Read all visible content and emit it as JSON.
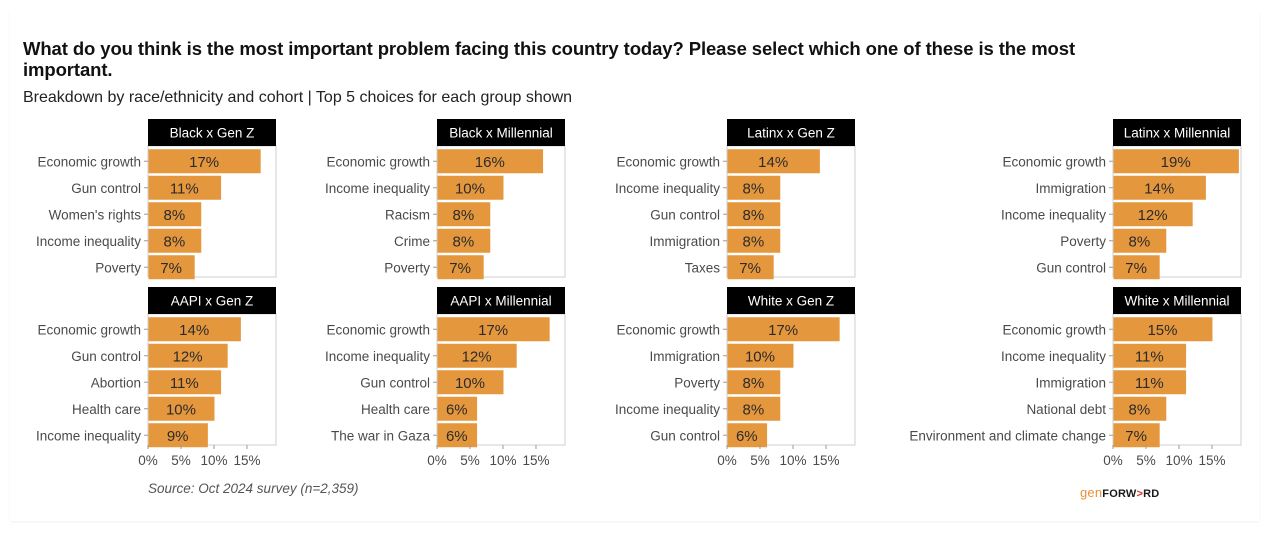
{
  "title": "What do you think is the most important problem facing this country today? Please select which one of these is the most important.",
  "subtitle": "Breakdown by race/ethnicity and cohort | Top 5 choices for each group shown",
  "source": "Source: Oct 2024 survey (n=2,359)",
  "logo": {
    "part1": "gen",
    "part2": "FORW",
    "part3": ">",
    "part4": "RD"
  },
  "colors": {
    "bar": "#e5973d",
    "strip_bg": "#000000",
    "strip_text": "#ffffff",
    "panel_border": "#cfcfcf"
  },
  "chart_data": {
    "type": "bar",
    "orientation": "horizontal",
    "layout": "facet 2x4",
    "title": "What do you think is the most important problem facing this country today? Please select which one of these is the most important.",
    "subtitle": "Breakdown by race/ethnicity and cohort | Top 5 choices for each group shown",
    "xlabel": "",
    "ylabel": "",
    "xlim": [
      0,
      19.4
    ],
    "xticks": [
      0,
      5,
      10,
      15
    ],
    "xtick_labels": [
      "0%",
      "5%",
      "10%",
      "15%"
    ],
    "grid": false,
    "legend": "none",
    "panels": [
      {
        "name": "Black x Gen Z",
        "categories": [
          "Economic growth",
          "Gun control",
          "Women's rights",
          "Income inequality",
          "Poverty"
        ],
        "values": [
          17,
          11,
          8,
          8,
          7
        ],
        "labels": [
          "17%",
          "11%",
          "8%",
          "8%",
          "7%"
        ]
      },
      {
        "name": "Black x Millennial",
        "categories": [
          "Economic growth",
          "Income inequality",
          "Racism",
          "Crime",
          "Poverty"
        ],
        "values": [
          16,
          10,
          8,
          8,
          7
        ],
        "labels": [
          "16%",
          "10%",
          "8%",
          "8%",
          "7%"
        ]
      },
      {
        "name": "Latinx x Gen Z",
        "categories": [
          "Economic growth",
          "Income inequality",
          "Gun control",
          "Immigration",
          "Taxes"
        ],
        "values": [
          14,
          8,
          8,
          8,
          7
        ],
        "labels": [
          "14%",
          "8%",
          "8%",
          "8%",
          "7%"
        ]
      },
      {
        "name": "Latinx x Millennial",
        "categories": [
          "Economic growth",
          "Immigration",
          "Income inequality",
          "Poverty",
          "Gun control"
        ],
        "values": [
          19,
          14,
          12,
          8,
          7
        ],
        "labels": [
          "19%",
          "14%",
          "12%",
          "8%",
          "7%"
        ]
      },
      {
        "name": "AAPI x Gen Z",
        "categories": [
          "Economic growth",
          "Gun control",
          "Abortion",
          "Health care",
          "Income inequality"
        ],
        "values": [
          14,
          12,
          11,
          10,
          9
        ],
        "labels": [
          "14%",
          "12%",
          "11%",
          "10%",
          "9%"
        ]
      },
      {
        "name": "AAPI x Millennial",
        "categories": [
          "Economic growth",
          "Income inequality",
          "Gun control",
          "Health care",
          "The war in Gaza"
        ],
        "values": [
          17,
          12,
          10,
          6,
          6
        ],
        "labels": [
          "17%",
          "12%",
          "10%",
          "6%",
          "6%"
        ]
      },
      {
        "name": "White x Gen Z",
        "categories": [
          "Economic growth",
          "Immigration",
          "Poverty",
          "Income inequality",
          "Gun control"
        ],
        "values": [
          17,
          10,
          8,
          8,
          6
        ],
        "labels": [
          "17%",
          "10%",
          "8%",
          "8%",
          "6%"
        ]
      },
      {
        "name": "White x Millennial",
        "categories": [
          "Economic growth",
          "Income inequality",
          "Immigration",
          "National debt",
          "Environment and climate change"
        ],
        "values": [
          15,
          11,
          11,
          8,
          7
        ],
        "labels": [
          "15%",
          "11%",
          "11%",
          "8%",
          "7%"
        ]
      }
    ]
  }
}
